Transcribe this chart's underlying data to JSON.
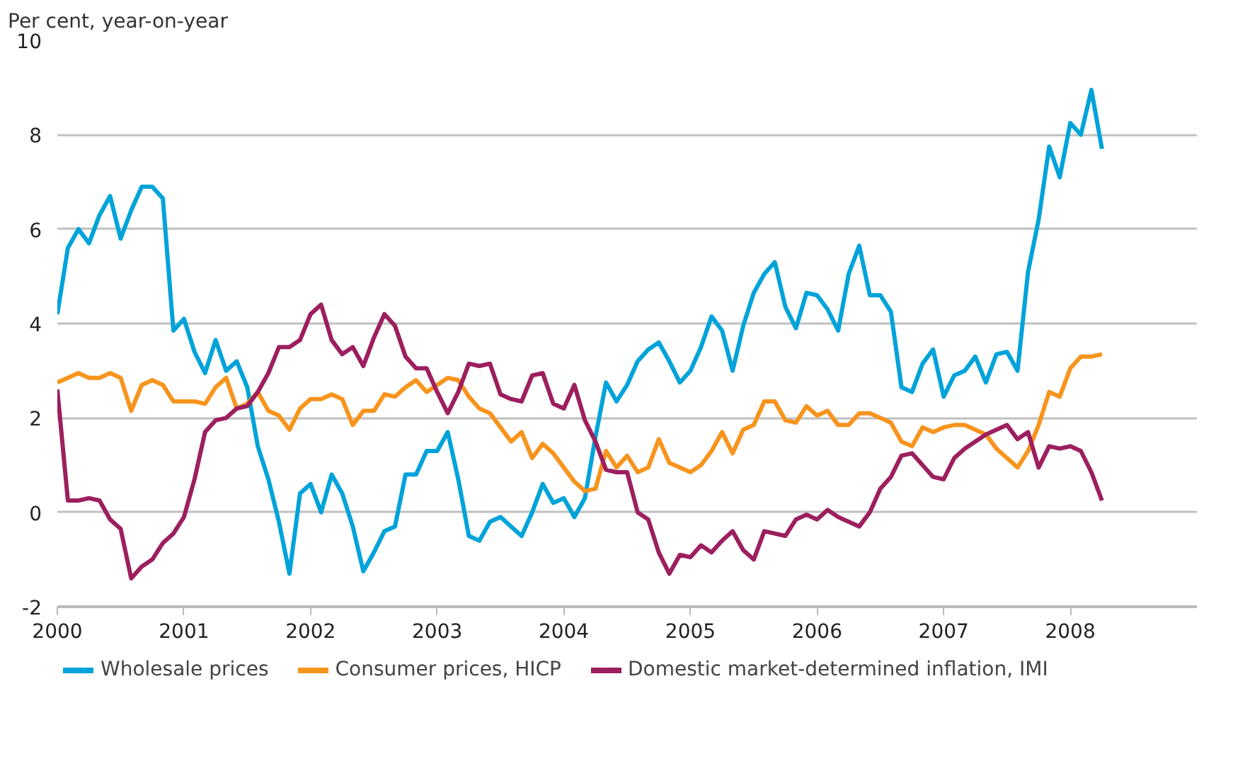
{
  "chart_data": {
    "type": "line",
    "ylabel": "Per cent, year-on-year",
    "x": [
      "2000-01",
      "2000-02",
      "2000-03",
      "2000-04",
      "2000-05",
      "2000-06",
      "2000-07",
      "2000-08",
      "2000-09",
      "2000-10",
      "2000-11",
      "2000-12",
      "2001-01",
      "2001-02",
      "2001-03",
      "2001-04",
      "2001-05",
      "2001-06",
      "2001-07",
      "2001-08",
      "2001-09",
      "2001-10",
      "2001-11",
      "2001-12",
      "2002-01",
      "2002-02",
      "2002-03",
      "2002-04",
      "2002-05",
      "2002-06",
      "2002-07",
      "2002-08",
      "2002-09",
      "2002-10",
      "2002-11",
      "2002-12",
      "2003-01",
      "2003-02",
      "2003-03",
      "2003-04",
      "2003-05",
      "2003-06",
      "2003-07",
      "2003-08",
      "2003-09",
      "2003-10",
      "2003-11",
      "2003-12",
      "2004-01",
      "2004-02",
      "2004-03",
      "2004-04",
      "2004-05",
      "2004-06",
      "2004-07",
      "2004-08",
      "2004-09",
      "2004-10",
      "2004-11",
      "2004-12",
      "2005-01",
      "2005-02",
      "2005-03",
      "2005-04",
      "2005-05",
      "2005-06",
      "2005-07",
      "2005-08",
      "2005-09",
      "2005-10",
      "2005-11",
      "2005-12",
      "2006-01",
      "2006-02",
      "2006-03",
      "2006-04",
      "2006-05",
      "2006-06",
      "2006-07",
      "2006-08",
      "2006-09",
      "2006-10",
      "2006-11",
      "2006-12",
      "2007-01",
      "2007-02",
      "2007-03",
      "2007-04",
      "2007-05",
      "2007-06",
      "2007-07",
      "2007-08",
      "2007-09",
      "2007-10",
      "2007-11",
      "2007-12",
      "2008-01",
      "2008-02",
      "2008-03",
      "2008-04"
    ],
    "series": [
      {
        "name": "Wholesale prices",
        "color": "#00a3d9",
        "values": [
          4.2,
          5.6,
          6.0,
          5.7,
          6.3,
          6.7,
          5.8,
          6.4,
          6.9,
          6.9,
          6.65,
          3.85,
          4.1,
          3.4,
          2.95,
          3.65,
          3.0,
          3.2,
          2.65,
          1.4,
          0.7,
          -0.2,
          -1.3,
          0.4,
          0.6,
          0.0,
          0.8,
          0.4,
          -0.3,
          -1.25,
          -0.85,
          -0.4,
          -0.3,
          0.8,
          0.8,
          1.3,
          1.3,
          1.7,
          0.7,
          -0.5,
          -0.6,
          -0.2,
          -0.1,
          -0.3,
          -0.5,
          0.0,
          0.6,
          0.2,
          0.3,
          -0.1,
          0.3,
          1.6,
          2.75,
          2.35,
          2.7,
          3.2,
          3.45,
          3.6,
          3.2,
          2.75,
          3.0,
          3.5,
          4.15,
          3.85,
          3.0,
          3.95,
          4.65,
          5.05,
          5.3,
          4.35,
          3.9,
          4.65,
          4.6,
          4.3,
          3.85,
          5.05,
          5.65,
          4.6,
          4.6,
          4.25,
          2.65,
          2.55,
          3.15,
          3.45,
          2.45,
          2.9,
          3.0,
          3.3,
          2.75,
          3.35,
          3.4,
          3.0,
          5.1,
          6.2,
          7.75,
          7.1,
          8.25,
          8.0,
          8.95,
          7.7
        ]
      },
      {
        "name": "Consumer prices, HICP",
        "color": "#f7941d",
        "values": [
          2.75,
          2.85,
          2.95,
          2.85,
          2.85,
          2.95,
          2.85,
          2.15,
          2.7,
          2.8,
          2.7,
          2.35,
          2.35,
          2.35,
          2.3,
          2.65,
          2.85,
          2.2,
          2.3,
          2.55,
          2.15,
          2.05,
          1.75,
          2.2,
          2.4,
          2.4,
          2.5,
          2.4,
          1.85,
          2.15,
          2.15,
          2.5,
          2.45,
          2.65,
          2.8,
          2.55,
          2.7,
          2.85,
          2.8,
          2.45,
          2.2,
          2.1,
          1.8,
          1.5,
          1.7,
          1.15,
          1.45,
          1.25,
          0.95,
          0.65,
          0.45,
          0.5,
          1.3,
          0.95,
          1.2,
          0.85,
          0.95,
          1.55,
          1.05,
          0.95,
          0.85,
          1.0,
          1.3,
          1.7,
          1.25,
          1.75,
          1.85,
          2.35,
          2.35,
          1.95,
          1.9,
          2.25,
          2.05,
          2.15,
          1.85,
          1.85,
          2.1,
          2.1,
          2.0,
          1.9,
          1.5,
          1.4,
          1.8,
          1.7,
          1.8,
          1.85,
          1.85,
          1.75,
          1.65,
          1.35,
          1.15,
          0.95,
          1.3,
          1.85,
          2.55,
          2.45,
          3.05,
          3.3,
          3.3,
          3.35
        ]
      },
      {
        "name": "Domestic market-determined inflation, IMI",
        "color": "#9c1f5e",
        "values": [
          2.6,
          0.25,
          0.25,
          0.3,
          0.25,
          -0.15,
          -0.35,
          -1.4,
          -1.15,
          -1.0,
          -0.65,
          -0.45,
          -0.1,
          0.7,
          1.7,
          1.95,
          2.0,
          2.2,
          2.25,
          2.55,
          2.95,
          3.5,
          3.5,
          3.65,
          4.2,
          4.4,
          3.65,
          3.35,
          3.5,
          3.1,
          3.7,
          4.2,
          3.95,
          3.3,
          3.05,
          3.05,
          2.55,
          2.1,
          2.55,
          3.15,
          3.1,
          3.15,
          2.5,
          2.4,
          2.35,
          2.9,
          2.95,
          2.3,
          2.2,
          2.7,
          1.95,
          1.5,
          0.9,
          0.85,
          0.85,
          0.0,
          -0.15,
          -0.85,
          -1.3,
          -0.9,
          -0.95,
          -0.7,
          -0.85,
          -0.6,
          -0.4,
          -0.8,
          -1.0,
          -0.4,
          -0.45,
          -0.5,
          -0.15,
          -0.05,
          -0.15,
          0.05,
          -0.1,
          -0.2,
          -0.3,
          0.0,
          0.5,
          0.75,
          1.2,
          1.25,
          1.0,
          0.75,
          0.7,
          1.15,
          1.35,
          1.5,
          1.65,
          1.75,
          1.85,
          1.55,
          1.7,
          0.95,
          1.4,
          1.35,
          1.4,
          1.3,
          0.85,
          0.25
        ]
      }
    ],
    "xlim": [
      "2000",
      "2009"
    ],
    "xticks": [
      "2000",
      "2001",
      "2002",
      "2003",
      "2004",
      "2005",
      "2006",
      "2007",
      "2008"
    ],
    "ylim": [
      -2,
      10
    ],
    "yticks": [
      -2,
      0,
      2,
      4,
      6,
      8,
      10
    ],
    "grid": "y",
    "legend": "bottom",
    "marker": "none",
    "line_style": "solid"
  }
}
